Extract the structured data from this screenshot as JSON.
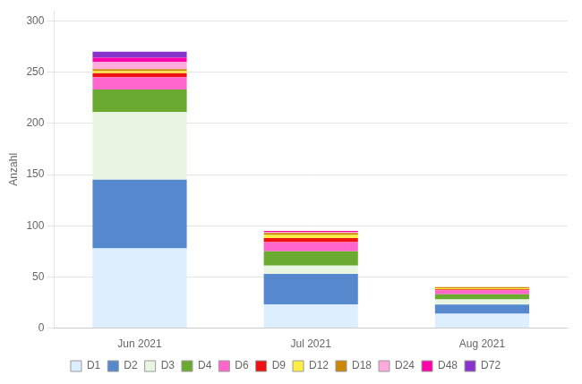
{
  "chart_data": {
    "type": "bar",
    "stacked": true,
    "categories": [
      "Jun 2021",
      "Jul 2021",
      "Aug 2021"
    ],
    "series": [
      {
        "name": "D1",
        "color": "#ddeeff",
        "values": [
          78,
          23,
          14
        ]
      },
      {
        "name": "D2",
        "color": "#5588cc",
        "values": [
          67,
          30,
          9
        ]
      },
      {
        "name": "D3",
        "color": "#e8f5e0",
        "values": [
          66,
          8,
          5
        ]
      },
      {
        "name": "D4",
        "color": "#6aaa30",
        "values": [
          22,
          14,
          5
        ]
      },
      {
        "name": "D6",
        "color": "#ff66cc",
        "values": [
          12,
          9,
          4
        ]
      },
      {
        "name": "D9",
        "color": "#ee1111",
        "values": [
          4,
          4,
          1
        ]
      },
      {
        "name": "D12",
        "color": "#ffee44",
        "values": [
          2,
          3,
          1
        ]
      },
      {
        "name": "D18",
        "color": "#cc8800",
        "values": [
          2,
          2,
          1
        ]
      },
      {
        "name": "D24",
        "color": "#ffaadd",
        "values": [
          7,
          1,
          0
        ]
      },
      {
        "name": "D48",
        "color": "#ff00aa",
        "values": [
          4,
          1,
          0
        ]
      },
      {
        "name": "D72",
        "color": "#8833cc",
        "values": [
          6,
          0,
          0
        ]
      }
    ],
    "ylabel": "Anzahl",
    "ylim": [
      0,
      310
    ],
    "yticks": [
      0,
      50,
      100,
      150,
      200,
      250,
      300
    ],
    "grid": true,
    "legend": "bottom"
  }
}
